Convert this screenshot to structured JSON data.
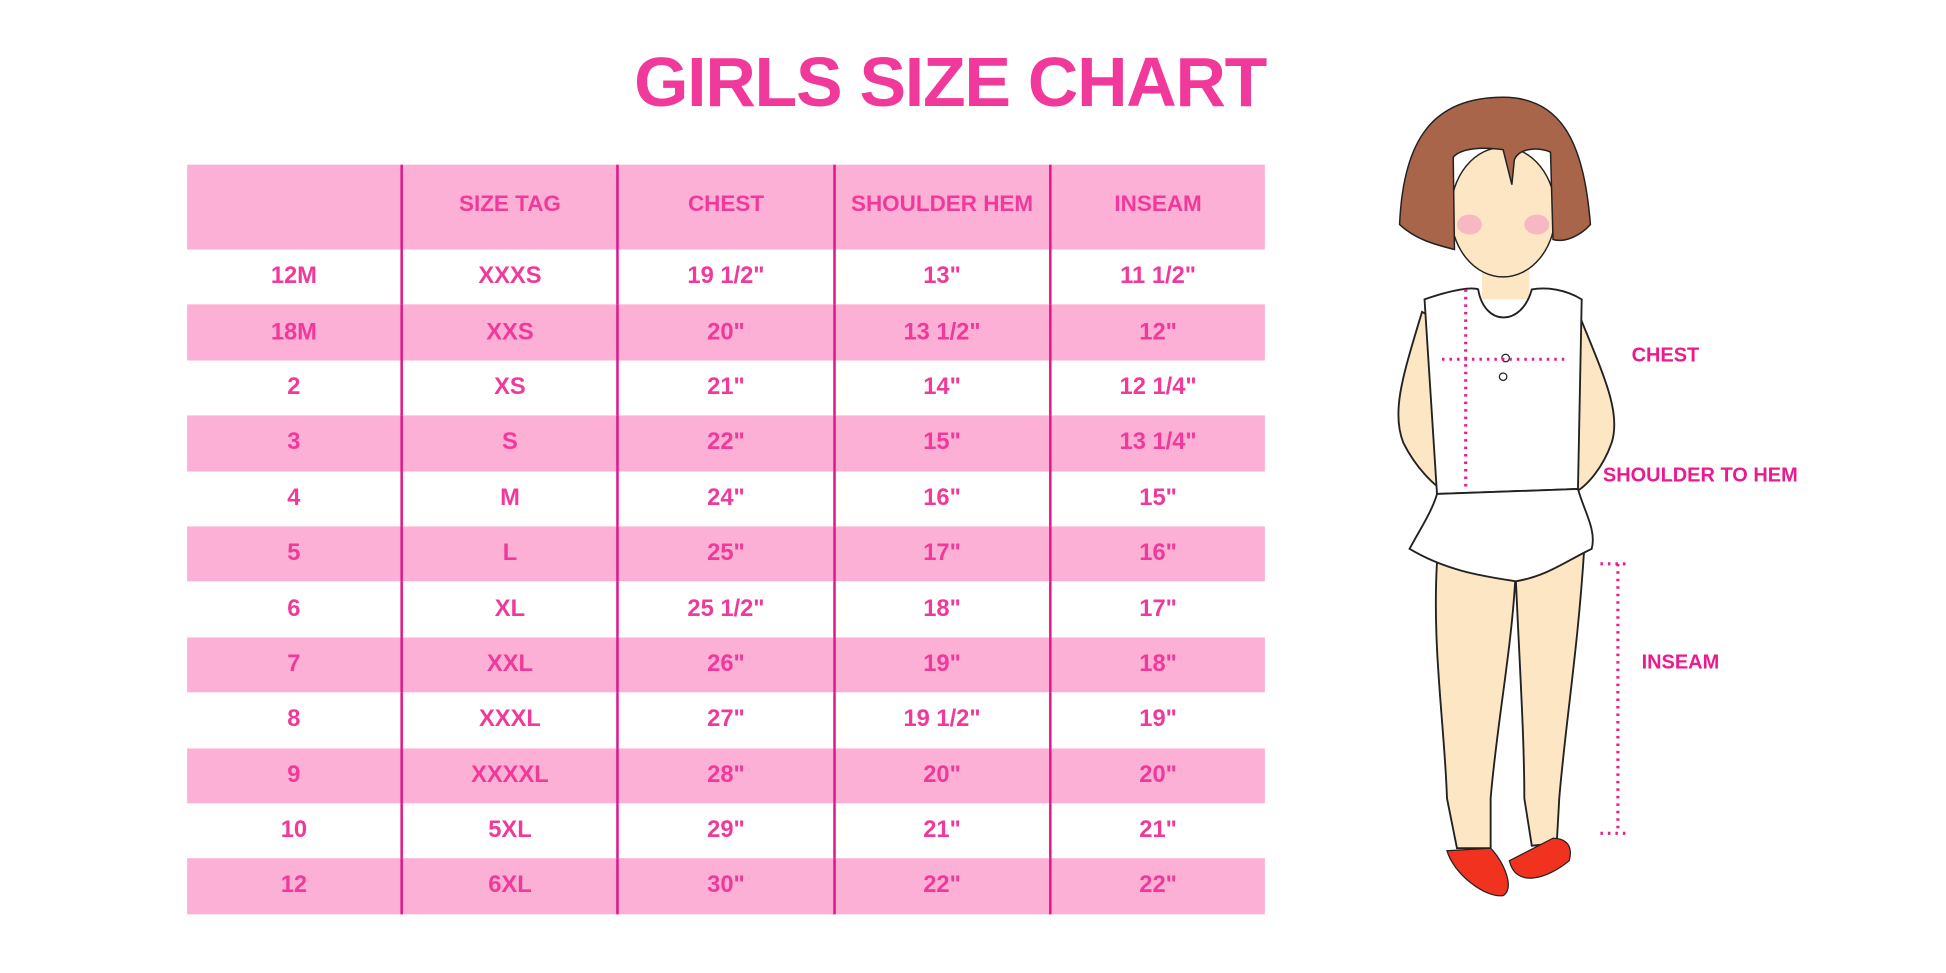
{
  "title": "GIRLS SIZE CHART",
  "table": {
    "headers": [
      "",
      "SIZE TAG",
      "CHEST",
      "SHOULDER HEM",
      "INSEAM"
    ],
    "rows": [
      [
        "12M",
        "XXXS",
        "19 1/2\"",
        "13\"",
        "11 1/2\""
      ],
      [
        "18M",
        "XXS",
        "20\"",
        "13 1/2\"",
        "12\""
      ],
      [
        "2",
        "XS",
        "21\"",
        "14\"",
        "12 1/4\""
      ],
      [
        "3",
        "S",
        "22\"",
        "15\"",
        "13 1/4\""
      ],
      [
        "4",
        "M",
        "24\"",
        "16\"",
        "15\""
      ],
      [
        "5",
        "L",
        "25\"",
        "17\"",
        "16\""
      ],
      [
        "6",
        "XL",
        "25 1/2\"",
        "18\"",
        "17\""
      ],
      [
        "7",
        "XXL",
        "26\"",
        "19\"",
        "18\""
      ],
      [
        "8",
        "XXXL",
        "27\"",
        "19 1/2\"",
        "19\""
      ],
      [
        "9",
        "XXXXL",
        "28\"",
        "20\"",
        "20\""
      ],
      [
        "10",
        "5XL",
        "29\"",
        "21\"",
        "21\""
      ],
      [
        "12",
        "6XL",
        "30\"",
        "22\"",
        "22\""
      ]
    ]
  },
  "figure": {
    "labels": {
      "chest": "CHEST",
      "shoulder": "SHOULDER TO HEM",
      "inseam": "INSEAM"
    }
  },
  "colors": {
    "accent": "#f0399a",
    "row_band": "#fdb0d5",
    "divider": "#e0168a"
  }
}
